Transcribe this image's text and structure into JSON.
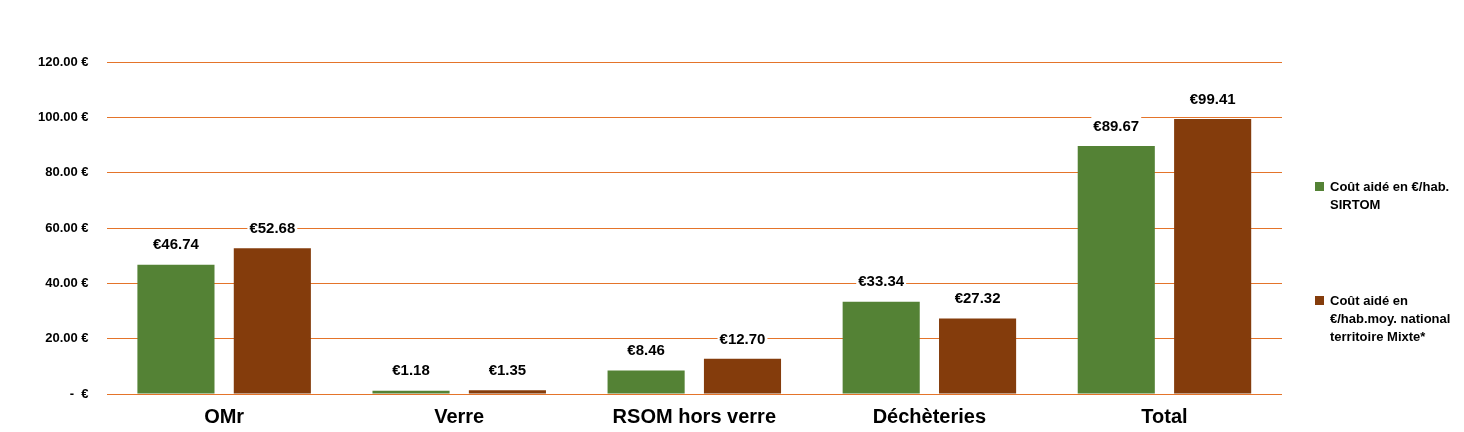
{
  "chart_data": {
    "type": "bar",
    "categories": [
      "OMr",
      "Verre",
      "RSOM hors verre",
      "Déchèteries",
      "Total"
    ],
    "series": [
      {
        "name": "Coût aidé en €/hab. SIRTOM",
        "color": "#548235",
        "values": [
          46.74,
          1.18,
          8.46,
          33.34,
          89.67
        ],
        "value_labels": [
          "€46.74",
          "€1.18",
          "€8.46",
          "€33.34",
          "€89.67"
        ]
      },
      {
        "name": "Coût aidé en €/hab.moy. national territoire Mixte*",
        "color": "#843c0c",
        "values": [
          52.68,
          1.35,
          12.7,
          27.32,
          99.41
        ],
        "value_labels": [
          "€52.68",
          "€1.35",
          "€12.70",
          "€27.32",
          "€99.41"
        ]
      }
    ],
    "ylim": [
      0,
      120
    ],
    "yticks": [
      {
        "value": 0,
        "label": "-  €"
      },
      {
        "value": 20,
        "label": "20.00 €"
      },
      {
        "value": 40,
        "label": "40.00 €"
      },
      {
        "value": 60,
        "label": "60.00 €"
      },
      {
        "value": 80,
        "label": "80.00 €"
      },
      {
        "value": 100,
        "label": "100.00 €"
      },
      {
        "value": 120,
        "label": "120.00 €"
      }
    ],
    "grid": "y",
    "legend": "right"
  }
}
